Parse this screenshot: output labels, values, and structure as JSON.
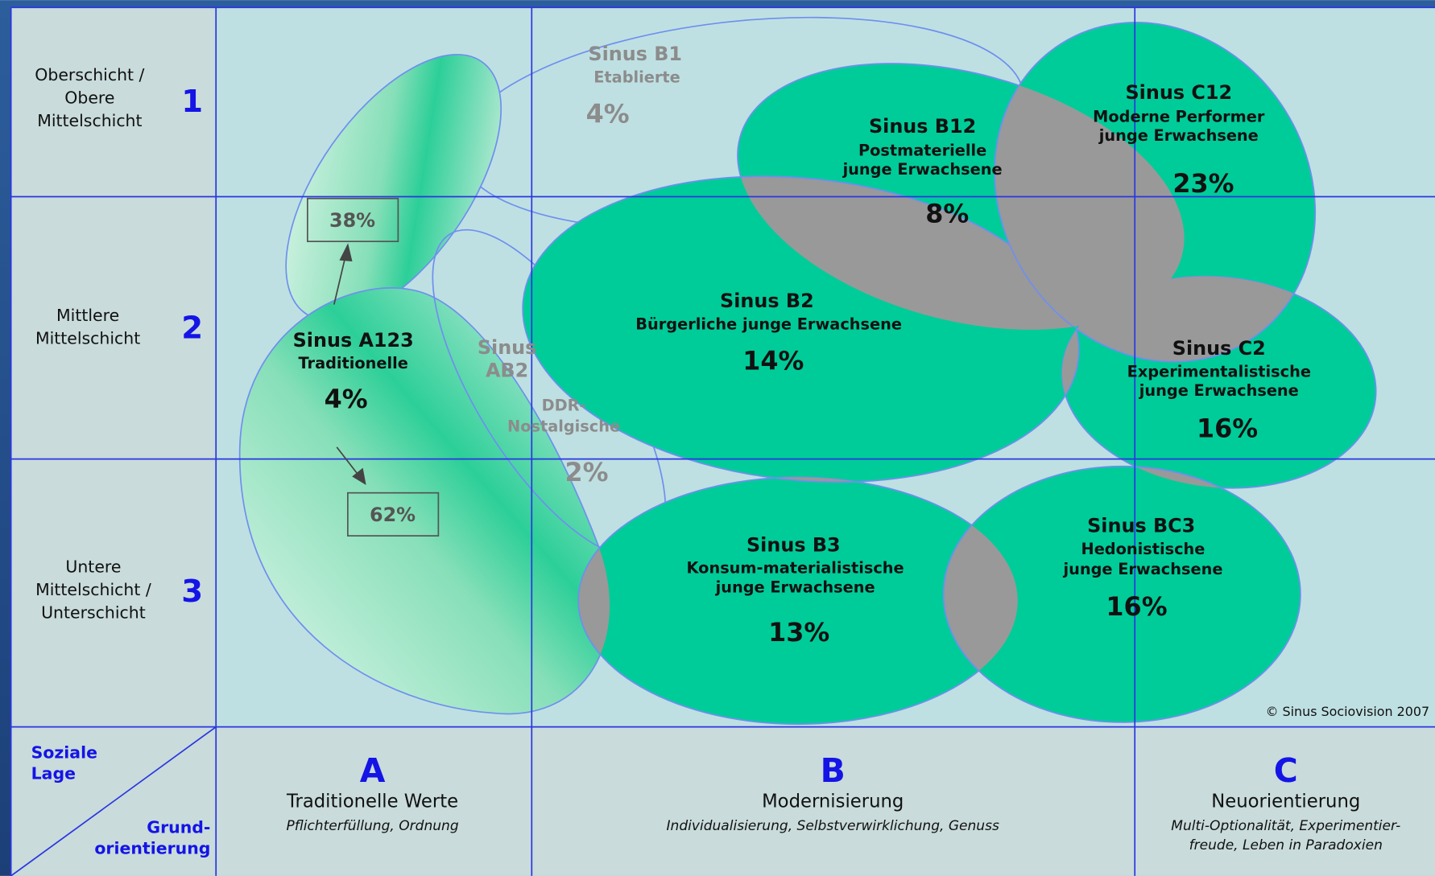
{
  "rows": [
    {
      "label": [
        "Oberschicht /",
        "Obere",
        "Mittelschicht"
      ],
      "number": "1"
    },
    {
      "label": [
        "Mittlere",
        "Mittelschicht"
      ],
      "number": "2"
    },
    {
      "label": [
        "Untere",
        "Mittelschicht /",
        "Unterschicht"
      ],
      "number": "3"
    }
  ],
  "columns": [
    {
      "letter": "A",
      "title": "Traditionelle Werte",
      "subtitle": [
        "Pflichterfüllung, Ordnung"
      ]
    },
    {
      "letter": "B",
      "title": "Modernisierung",
      "subtitle": [
        "Individualisierung, Selbstverwirklichung, Genuss"
      ]
    },
    {
      "letter": "C",
      "title": "Neuorientierung",
      "subtitle": [
        "Multi-Optionalität, Experimentier-",
        "freude, Leben in Paradoxien"
      ]
    }
  ],
  "corner": {
    "top": [
      "Soziale",
      "Lage"
    ],
    "bottom": [
      "Grund-",
      "orientierung"
    ]
  },
  "milieus": [
    {
      "name": "Sinus A123",
      "description": [
        "Traditionelle"
      ],
      "share": "4%",
      "upper_share": "38%",
      "lower_share": "62%"
    },
    {
      "name": "Sinus B1",
      "description": [
        "Etablierte"
      ],
      "share": "4%"
    },
    {
      "name": [
        "Sinus",
        "AB2"
      ],
      "description": [
        "DDR-",
        "Nostalgische"
      ],
      "share": "2%"
    },
    {
      "name": "Sinus B12",
      "description": [
        "Postmaterielle",
        "junge Erwachsene"
      ],
      "share": "8%"
    },
    {
      "name": "Sinus C12",
      "description": [
        "Moderne Performer",
        "junge Erwachsene"
      ],
      "share": "23%"
    },
    {
      "name": "Sinus B2",
      "description": [
        "Bürgerliche junge Erwachsene"
      ],
      "share": "14%"
    },
    {
      "name": "Sinus C2",
      "description": [
        "Experimentalistische",
        "junge Erwachsene"
      ],
      "share": "16%"
    },
    {
      "name": "Sinus B3",
      "description": [
        "Konsum-materialistische",
        "junge Erwachsene"
      ],
      "share": "13%"
    },
    {
      "name": "Sinus BC3",
      "description": [
        "Hedonistische",
        "junge Erwachsene"
      ],
      "share": "16%"
    }
  ],
  "copyright": "© Sinus Sociovision 2007"
}
